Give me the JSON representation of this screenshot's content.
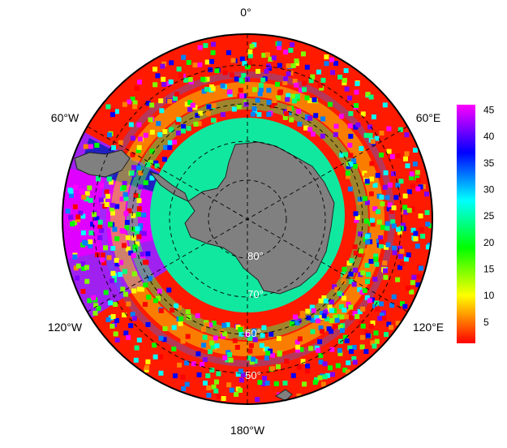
{
  "map": {
    "projection": "south-polar-stereographic",
    "longitude_labels": {
      "top": "0°",
      "upper_right": "60°E",
      "lower_right": "120°E",
      "bottom": "180°W",
      "lower_left": "120°W",
      "upper_left": "60°W"
    },
    "latitude_labels": [
      "80°",
      "70°",
      "60°",
      "50°"
    ],
    "land_color": "#808080",
    "graticule": "dashed"
  },
  "colorbar": {
    "ticks": [
      "45",
      "40",
      "35",
      "30",
      "25",
      "20",
      "15",
      "10",
      "5"
    ],
    "range": [
      1,
      46
    ],
    "colors": [
      "#ff00ff",
      "#8000ff",
      "#0000ff",
      "#0080ff",
      "#00ffff",
      "#00ff80",
      "#00ff00",
      "#80ff00",
      "#ffff00",
      "#ff8000",
      "#ff0000"
    ]
  }
}
